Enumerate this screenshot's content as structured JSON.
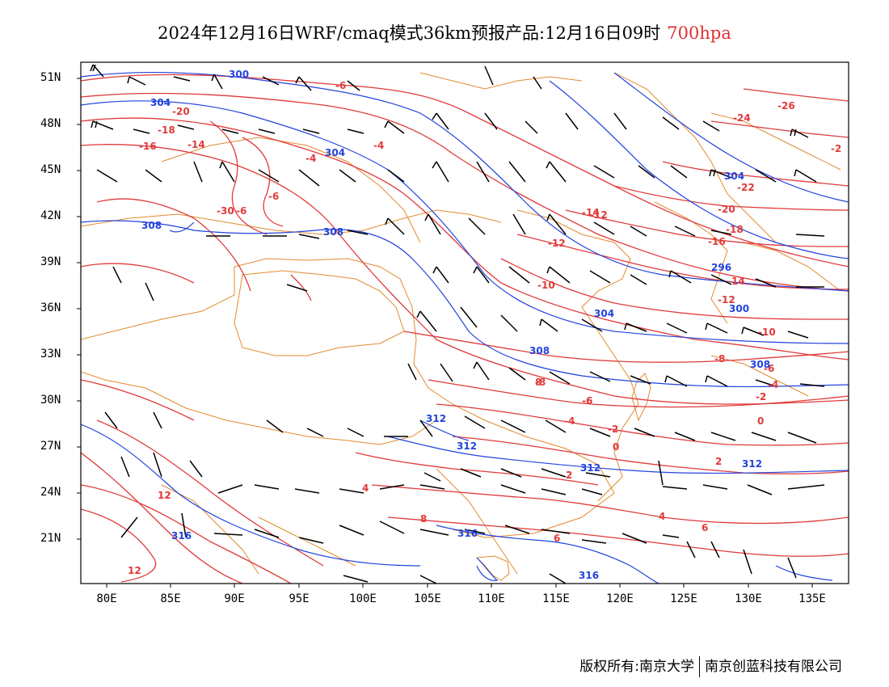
{
  "header": {
    "title": "2024年12月16日WRF/cmaq模式36km预报产品:12月16日09时",
    "level": "700hpa"
  },
  "colors": {
    "temperature": "#e03a3a",
    "height": "#2244dd",
    "coast": "#e38a2e",
    "barb": "#000000"
  },
  "axes": {
    "lat_labels": [
      "51N",
      "48N",
      "45N",
      "42N",
      "39N",
      "36N",
      "33N",
      "30N",
      "27N",
      "24N",
      "21N"
    ],
    "lon_labels": [
      "80E",
      "85E",
      "90E",
      "95E",
      "100E",
      "105E",
      "110E",
      "115E",
      "120E",
      "125E",
      "130E",
      "135E"
    ]
  },
  "contours": {
    "temperature_labels": [
      "-6",
      "-20",
      "-18",
      "-16",
      "-14",
      "-4",
      "-4",
      "-6",
      "-30",
      "-6",
      "-24",
      "-26",
      "-2",
      "-22",
      "-20",
      "-18",
      "-16",
      "-14",
      "-12",
      "-12",
      "-10",
      "-14",
      "-12",
      "-10",
      "-8",
      "-6",
      "-4",
      "-2",
      "0",
      "2",
      "4",
      "6",
      "8",
      "12",
      "12",
      "-6",
      "-8",
      "-6",
      "-4",
      "-2",
      "0",
      "2",
      "4",
      "6",
      "8"
    ],
    "height_labels": [
      "300",
      "304",
      "304",
      "308",
      "308",
      "308",
      "304",
      "312",
      "312",
      "312",
      "316",
      "316",
      "316",
      "296",
      "300",
      "304",
      "308",
      "312"
    ]
  },
  "footer": {
    "left": "版权所有:南京大学",
    "right": "南京创蓝科技有限公司"
  }
}
